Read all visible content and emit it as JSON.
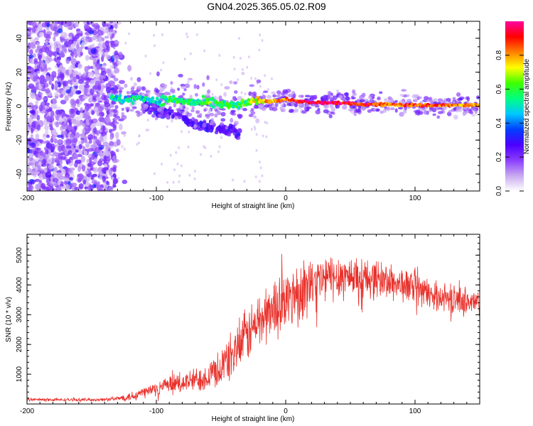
{
  "title": "GN04.2025.365.05.02.R09",
  "chart_data": [
    {
      "type": "heatmap",
      "title": "GN04.2025.365.05.02.R09",
      "xlabel": "Height of straight line (km)",
      "ylabel": "Frequency (Hz)",
      "xlim": [
        -200,
        150
      ],
      "ylim": [
        -50,
        50
      ],
      "xticks": [
        -200,
        -100,
        0,
        100
      ],
      "yticks": [
        -40,
        -20,
        0,
        20,
        40
      ],
      "colorbar": {
        "label": "Normalized spectral amplitude",
        "range": [
          0,
          1
        ],
        "ticks": [
          "0.0",
          "0.2",
          "0.4",
          "0.6",
          "0.8"
        ],
        "colormap": [
          "#ffffff",
          "#c8a8f0",
          "#8a3cff",
          "#4b00ff",
          "#0040ff",
          "#00c8ff",
          "#00ff80",
          "#40ff00",
          "#ffff00",
          "#ff8000",
          "#ff0000",
          "#ff00a0"
        ]
      },
      "ridge": {
        "x": [
          -135,
          -120,
          -110,
          -100,
          -90,
          -80,
          -70,
          -60,
          -50,
          -40,
          -30,
          -20,
          -10,
          0,
          10,
          20,
          40,
          60,
          80,
          100,
          120,
          150
        ],
        "freq": [
          4,
          4,
          5,
          3,
          4,
          3,
          2,
          2,
          1,
          0,
          2,
          3,
          3,
          4,
          3,
          2,
          2,
          1,
          1,
          0.5,
          0.5,
          0.5
        ],
        "amplitude": [
          0.5,
          0.5,
          0.5,
          0.5,
          0.55,
          0.55,
          0.55,
          0.6,
          0.6,
          0.55,
          0.6,
          0.75,
          0.8,
          0.8,
          0.9,
          0.95,
          0.95,
          0.9,
          0.85,
          0.85,
          0.85,
          0.8
        ]
      },
      "secondary_branch": {
        "x": [
          -110,
          -95,
          -80,
          -70,
          -60,
          -50,
          -40,
          -35
        ],
        "freq": [
          0,
          -3,
          -7,
          -10,
          -12,
          -14,
          -15,
          -18
        ]
      },
      "noise_region_x": [
        -200,
        -130
      ],
      "noise_amplitude": 0.15
    },
    {
      "type": "line",
      "xlabel": "Height of straight line (km)",
      "ylabel": "SNR (10 * v/v)",
      "xlim": [
        -200,
        150
      ],
      "ylim": [
        0,
        5700
      ],
      "xticks": [
        -200,
        -100,
        0,
        100
      ],
      "yticks": [
        1000,
        2000,
        3000,
        4000,
        5000
      ],
      "color": "#e8302a",
      "series": [
        {
          "name": "SNR",
          "x": [
            -200,
            -180,
            -160,
            -140,
            -130,
            -120,
            -110,
            -100,
            -90,
            -80,
            -70,
            -60,
            -50,
            -40,
            -30,
            -20,
            -10,
            0,
            10,
            20,
            30,
            40,
            50,
            60,
            70,
            80,
            90,
            100,
            110,
            120,
            130,
            140,
            150
          ],
          "values": [
            150,
            140,
            140,
            150,
            180,
            260,
            380,
            520,
            620,
            700,
            800,
            960,
            1250,
            1700,
            2300,
            2800,
            3200,
            3500,
            3800,
            4000,
            4200,
            4300,
            4300,
            4250,
            4200,
            4100,
            4000,
            3900,
            3700,
            3600,
            3500,
            3450,
            3350
          ],
          "spread": [
            60,
            60,
            60,
            70,
            90,
            200,
            260,
            300,
            350,
            400,
            500,
            600,
            800,
            1000,
            1100,
            1200,
            1200,
            1300,
            1200,
            1100,
            1000,
            1000,
            900,
            850,
            800,
            750,
            700,
            650,
            600,
            550,
            550,
            600,
            600
          ]
        }
      ]
    }
  ]
}
